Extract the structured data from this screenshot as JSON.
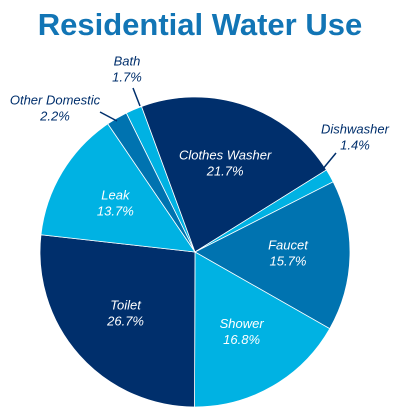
{
  "chart_data": {
    "type": "pie",
    "title": "Residential Water Use",
    "categories": [
      "Bath",
      "Clothes Washer",
      "Dishwasher",
      "Faucet",
      "Shower",
      "Toilet",
      "Leak",
      "Other Domestic"
    ],
    "values": [
      1.7,
      21.7,
      1.4,
      15.7,
      16.8,
      26.7,
      13.7,
      2.2
    ],
    "value_labels": [
      "1.7%",
      "21.7%",
      "1.4%",
      "15.7%",
      "16.8%",
      "26.7%",
      "13.7%",
      "2.2%"
    ],
    "colors": [
      "#00b2e3",
      "#002f6c",
      "#00b2e3",
      "#0073b0",
      "#00b2e3",
      "#002f6c",
      "#00b2e3",
      "#0073b0"
    ]
  }
}
